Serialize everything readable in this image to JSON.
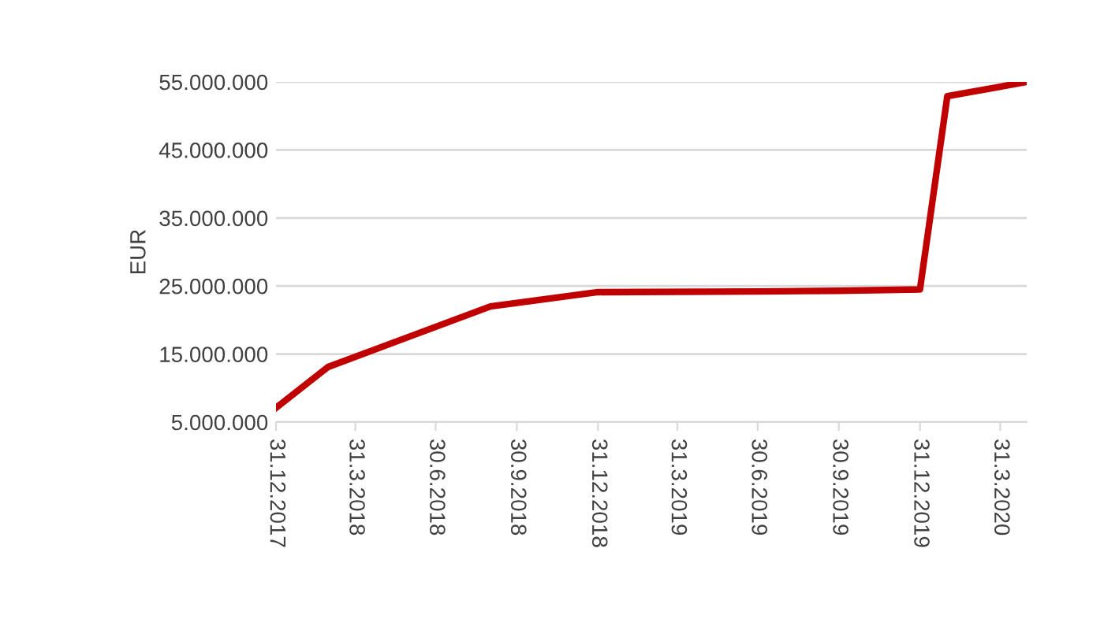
{
  "chart_data": {
    "type": "line",
    "ylabel": "EUR",
    "x": [
      "2017-12-31",
      "2018-02-28",
      "2018-08-31",
      "2018-12-31",
      "2019-06-30",
      "2019-09-30",
      "2019-12-31",
      "2020-01-31",
      "2020-04-30"
    ],
    "series": [
      {
        "color": "#c00000",
        "values": [
          7100000,
          13100000,
          22000000,
          24100000,
          24200000,
          24300000,
          24500000,
          52900000,
          55000000
        ]
      }
    ],
    "xlim": [
      "2017-12-31",
      "2020-04-30"
    ],
    "xticks": [
      {
        "value": "2017-12-31",
        "label": "31.12.2017"
      },
      {
        "value": "2018-03-31",
        "label": "31.3.2018"
      },
      {
        "value": "2018-06-30",
        "label": "30.6.2018"
      },
      {
        "value": "2018-09-30",
        "label": "30.9.2018"
      },
      {
        "value": "2018-12-31",
        "label": "31.12.2018"
      },
      {
        "value": "2019-03-31",
        "label": "31.3.2019"
      },
      {
        "value": "2019-06-30",
        "label": "30.6.2019"
      },
      {
        "value": "2019-09-30",
        "label": "30.9.2019"
      },
      {
        "value": "2019-12-31",
        "label": "31.12.2019"
      },
      {
        "value": "2020-03-31",
        "label": "31.3.2020"
      }
    ],
    "ylim": [
      5000000,
      55000000
    ],
    "yticks": [
      {
        "value": 5000000,
        "label": "5.000.000"
      },
      {
        "value": 15000000,
        "label": "15.000.000"
      },
      {
        "value": 25000000,
        "label": "25.000.000"
      },
      {
        "value": 35000000,
        "label": "35.000.000"
      },
      {
        "value": 45000000,
        "label": "45.000.000"
      },
      {
        "value": 55000000,
        "label": "55.000.000"
      }
    ],
    "grid": "y",
    "legend": false,
    "marker": "none",
    "line_style": "solid"
  }
}
